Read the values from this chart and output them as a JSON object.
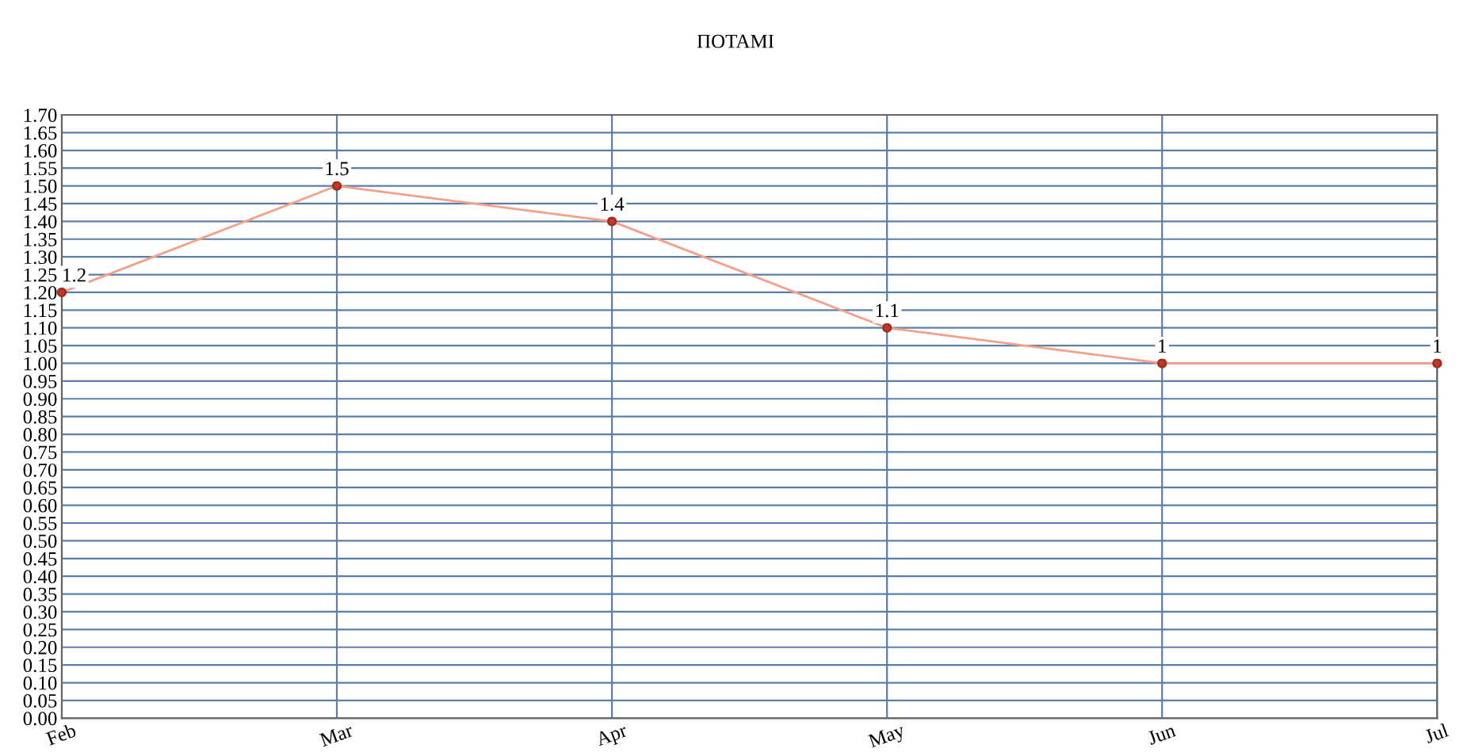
{
  "chart_data": {
    "type": "line",
    "title": "ΠΟΤΑΜΙ",
    "categories": [
      "Feb",
      "Mar",
      "Apr",
      "May",
      "Jun",
      "Jul"
    ],
    "series": [
      {
        "color": "#f4a08a",
        "values": [
          1.2,
          1.5,
          1.4,
          1.1,
          1,
          1
        ]
      }
    ],
    "ylim": [
      0,
      1.7
    ],
    "yticks": [
      {
        "value": 0,
        "label": "0.00"
      },
      {
        "value": 0.05,
        "label": "0.05"
      },
      {
        "value": 0.1,
        "label": "0.10"
      },
      {
        "value": 0.15,
        "label": "0.15"
      },
      {
        "value": 0.2,
        "label": "0.20"
      },
      {
        "value": 0.25,
        "label": "0.25"
      },
      {
        "value": 0.3,
        "label": "0.30"
      },
      {
        "value": 0.35,
        "label": "0.35"
      },
      {
        "value": 0.4,
        "label": "0.40"
      },
      {
        "value": 0.45,
        "label": "0.45"
      },
      {
        "value": 0.5,
        "label": "0.50"
      },
      {
        "value": 0.55,
        "label": "0.55"
      },
      {
        "value": 0.6,
        "label": "0.60"
      },
      {
        "value": 0.65,
        "label": "0.65"
      },
      {
        "value": 0.7,
        "label": "0.70"
      },
      {
        "value": 0.75,
        "label": "0.75"
      },
      {
        "value": 0.8,
        "label": "0.80"
      },
      {
        "value": 0.85,
        "label": "0.85"
      },
      {
        "value": 0.9,
        "label": "0.90"
      },
      {
        "value": 0.95,
        "label": "0.95"
      },
      {
        "value": 1,
        "label": "1.00"
      },
      {
        "value": 1.05,
        "label": "1.05"
      },
      {
        "value": 1.1,
        "label": "1.10"
      },
      {
        "value": 1.15,
        "label": "1.15"
      },
      {
        "value": 1.2,
        "label": "1.20"
      },
      {
        "value": 1.25,
        "label": "1.25"
      },
      {
        "value": 1.3,
        "label": "1.30"
      },
      {
        "value": 1.35,
        "label": "1.35"
      },
      {
        "value": 1.4,
        "label": "1.40"
      },
      {
        "value": 1.45,
        "label": "1.45"
      },
      {
        "value": 1.5,
        "label": "1.50"
      },
      {
        "value": 1.55,
        "label": "1.55"
      },
      {
        "value": 1.6,
        "label": "1.60"
      },
      {
        "value": 1.65,
        "label": "1.65"
      },
      {
        "value": 1.7,
        "label": "1.70"
      }
    ],
    "grid": true,
    "marker": "circle",
    "line_style": "solid",
    "data_labels": true
  }
}
